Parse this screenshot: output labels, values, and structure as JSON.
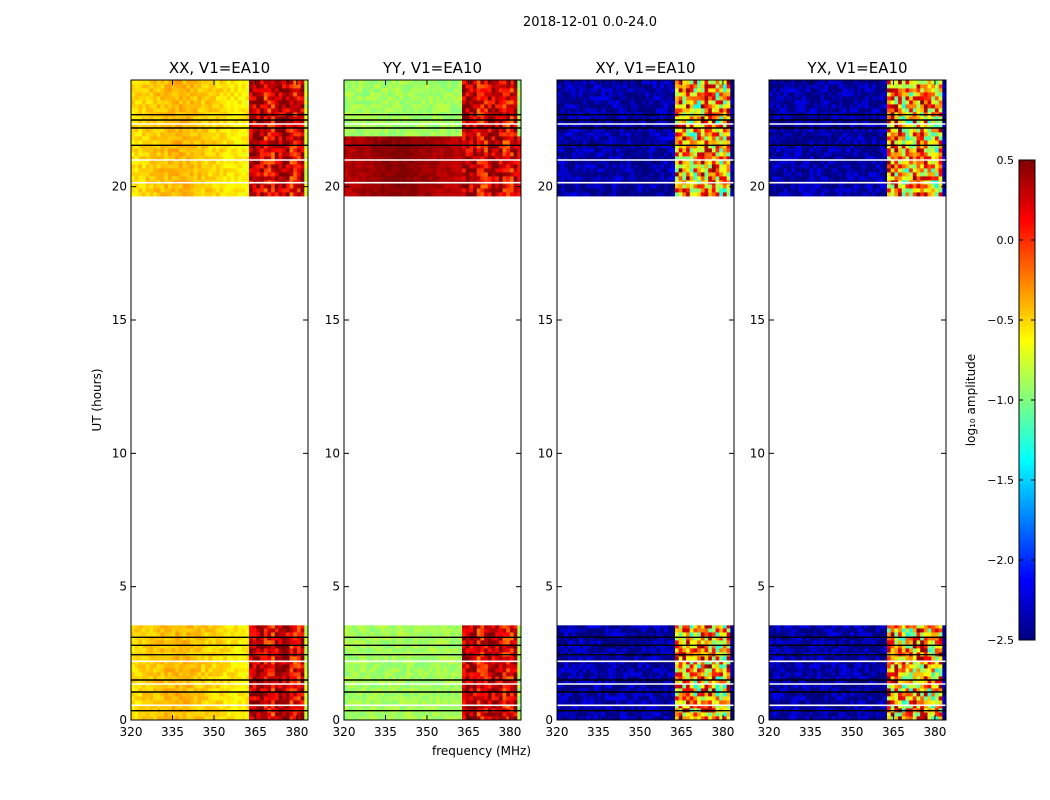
{
  "chart_data": {
    "type": "heatmap",
    "suptitle": "2018-12-01 0.0-24.0",
    "xlabel": "frequency (MHz)",
    "ylabel": "UT (hours)",
    "xlim": [
      320,
      384
    ],
    "ylim": [
      0,
      24
    ],
    "xticks": [
      320,
      335,
      350,
      365,
      380
    ],
    "yticks": [
      0,
      5,
      10,
      15,
      20
    ],
    "data_blocks_ut_hours": [
      [
        0,
        3.55
      ],
      [
        19.65,
        24
      ]
    ],
    "rfi_band_mhz": [
      363,
      382
    ],
    "black_lines_ut": [
      0.35,
      1.05,
      1.5,
      2.45,
      2.8,
      3.1,
      21.55,
      22.2,
      22.5,
      22.7
    ],
    "white_lines_ut": [
      0.55,
      1.35,
      2.2,
      20.15,
      21.0,
      22.35
    ],
    "panels": [
      {
        "title": "XX, V1=EA10",
        "base_level": -0.4,
        "rfi_level": 0.35
      },
      {
        "title": "YY, V1=EA10",
        "base_level": -0.9,
        "top_band_level": 0.5,
        "top_band_ut": [
          19.65,
          22.0
        ],
        "rfi_level": 0.35
      },
      {
        "title": "XY, V1=EA10",
        "base_level": -2.4,
        "rfi_level": -0.3
      },
      {
        "title": "YX, V1=EA10",
        "base_level": -2.4,
        "rfi_level": -0.3
      }
    ],
    "colorbar": {
      "label": "log₁₀ amplitude",
      "range": [
        -2.5,
        0.5
      ],
      "ticks": [
        "0.5",
        "0.0",
        "−0.5",
        "−1.0",
        "−1.5",
        "−2.0",
        "−2.5"
      ],
      "ticks_values": [
        0.5,
        0.0,
        -0.5,
        -1.0,
        -1.5,
        -2.0,
        -2.5
      ],
      "colormap": "jet"
    },
    "colormap_colors": [
      "#00007f",
      "#0000ff",
      "#007fff",
      "#00ffff",
      "#7fff7f",
      "#ffff00",
      "#ff7f00",
      "#ff0000",
      "#7f0000"
    ]
  }
}
